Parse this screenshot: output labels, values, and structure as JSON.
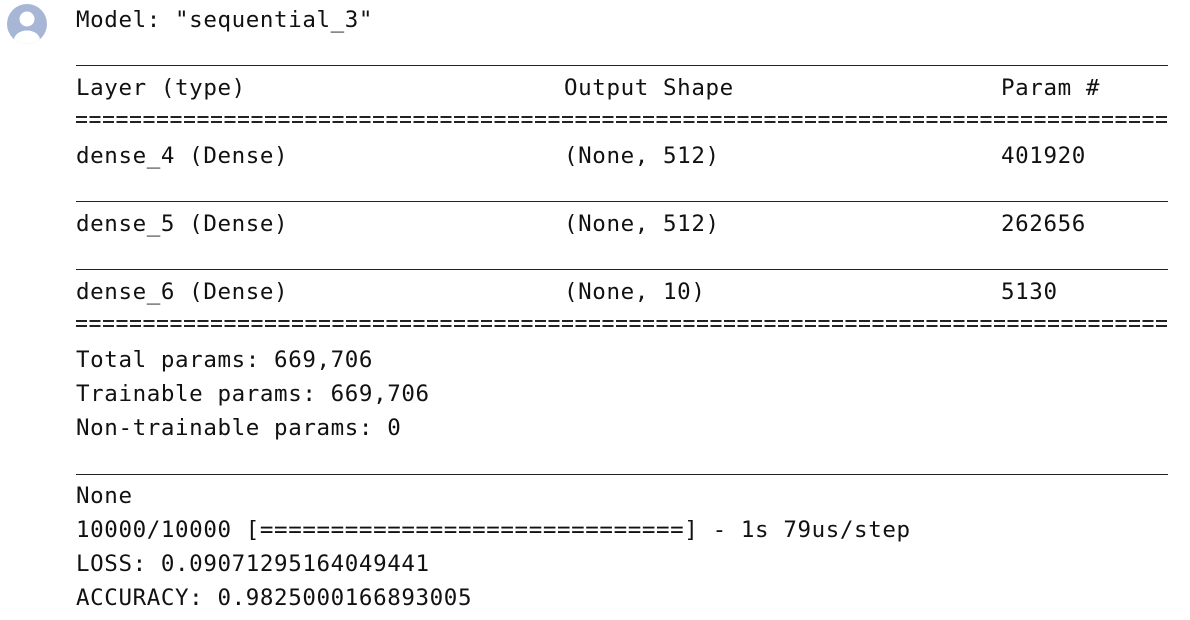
{
  "model_title": "Model: \"sequential_3\"",
  "headers": {
    "layer": "Layer (type)",
    "output_shape": "Output Shape",
    "params": "Param #"
  },
  "rows": [
    {
      "layer": "dense_4 (Dense)",
      "output_shape": "(None, 512)",
      "params": "401920"
    },
    {
      "layer": "dense_5 (Dense)",
      "output_shape": "(None, 512)",
      "params": "262656"
    },
    {
      "layer": "dense_6 (Dense)",
      "output_shape": "(None, 10)",
      "params": "5130"
    }
  ],
  "summary": {
    "total": "Total params: 669,706",
    "trainable": "Trainable params: 669,706",
    "non_trainable": "Non-trainable params: 0"
  },
  "returned": "None",
  "progress": {
    "count": "10000/10000",
    "bar": "[==============================]",
    "timing": " - 1s 79us/step"
  },
  "loss": "LOSS: 0.09071295164049441",
  "accuracy": "ACCURACY: 0.9825000166893005",
  "colors": {
    "avatar": "#a8b6d6",
    "text": "#111111"
  },
  "icons": {
    "avatar": "user-avatar-icon"
  }
}
